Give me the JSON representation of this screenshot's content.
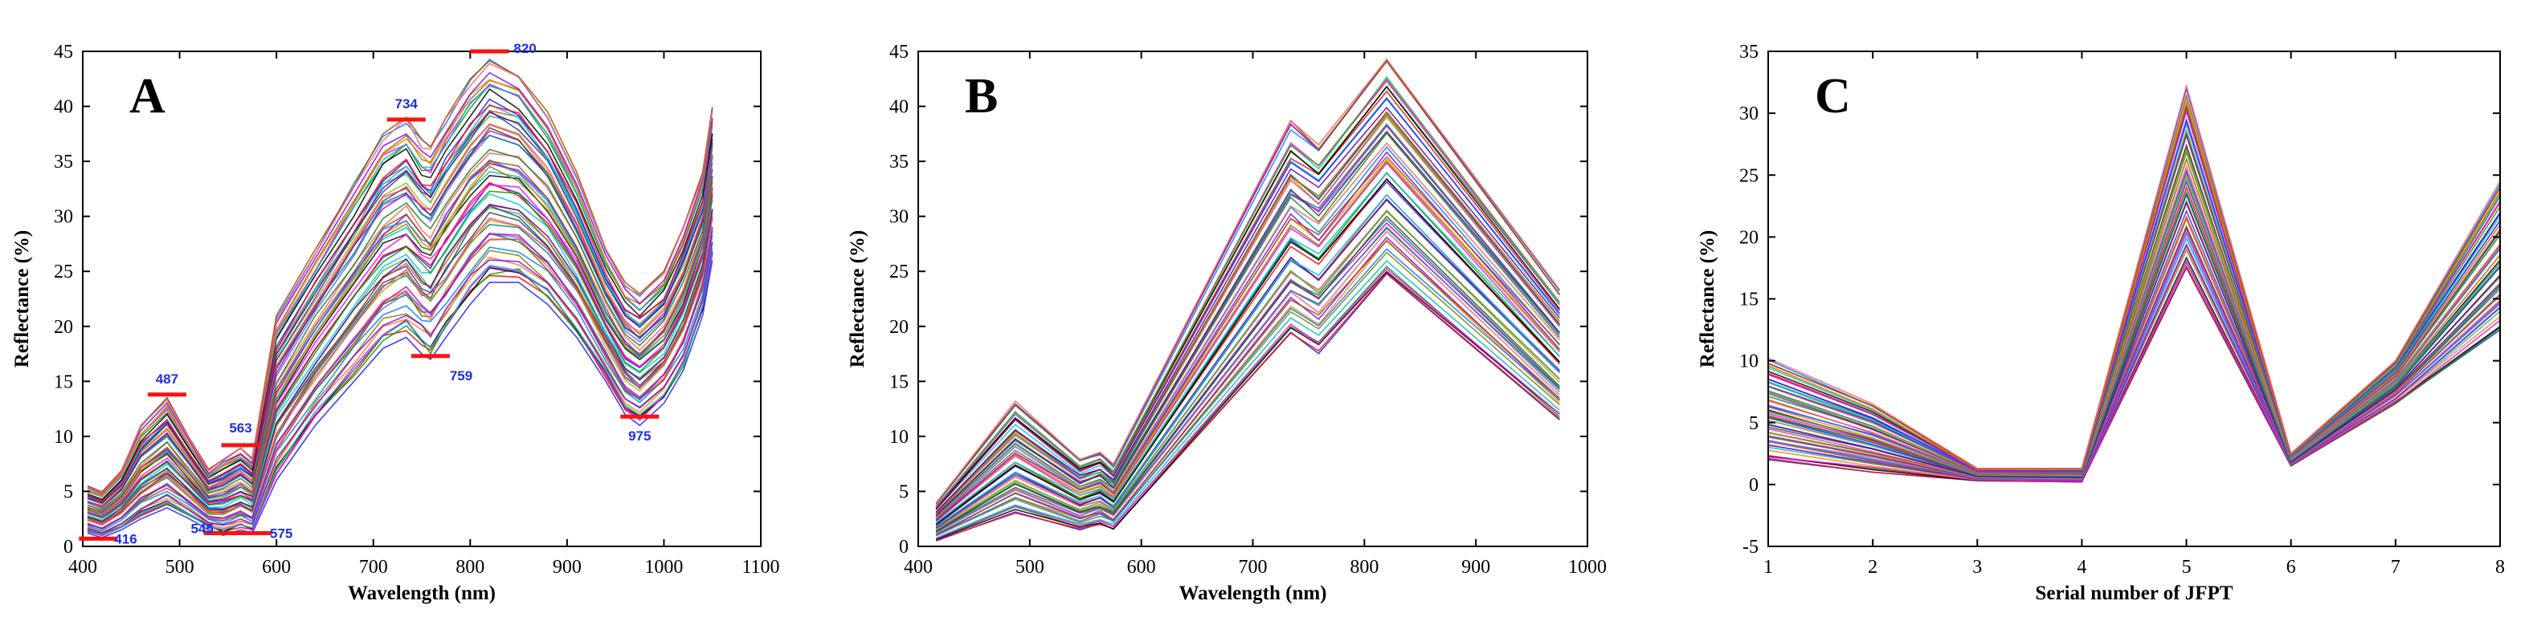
{
  "figure": {
    "panels": [
      "A",
      "B",
      "C"
    ]
  },
  "chart_data": [
    {
      "id": "A",
      "type": "line",
      "panel_label": "A",
      "title": "",
      "xlabel": "Wavelength (nm)",
      "ylabel": "Reflectance (%)",
      "xlim": [
        400,
        1100
      ],
      "ylim": [
        0,
        45
      ],
      "xticks": [
        "400",
        "500",
        "600",
        "700",
        "800",
        "900",
        "1000",
        "1100"
      ],
      "yticks": [
        "0",
        "5",
        "10",
        "15",
        "20",
        "25",
        "30",
        "35",
        "40",
        "45"
      ],
      "x": [
        405,
        420,
        440,
        460,
        487,
        510,
        530,
        545,
        563,
        575,
        600,
        640,
        680,
        710,
        734,
        750,
        759,
        775,
        800,
        820,
        850,
        880,
        910,
        940,
        960,
        975,
        1000,
        1020,
        1040,
        1050
      ],
      "envelope": {
        "max": [
          5.5,
          5,
          7,
          11,
          13.5,
          10,
          7,
          8,
          9,
          8,
          21,
          27,
          33,
          37.5,
          39,
          37,
          36.5,
          39,
          42.5,
          44.5,
          43,
          39.5,
          34,
          27,
          24,
          23,
          25,
          29,
          34,
          40
        ],
        "min": [
          1.2,
          0.8,
          1.5,
          2.5,
          3.5,
          2.5,
          1.5,
          1,
          1.5,
          1.2,
          6,
          11,
          15,
          18,
          19,
          17.5,
          17,
          19,
          22,
          24,
          24,
          22,
          19,
          15,
          12,
          11,
          13,
          16,
          21,
          26
        ]
      },
      "series_count": 60,
      "annotations": [
        {
          "text": "416",
          "x": 416,
          "y": 0.7,
          "marker": "red-bar"
        },
        {
          "text": "487",
          "x": 487,
          "y": 13.8,
          "marker": "red-bar"
        },
        {
          "text": "545",
          "x": 545,
          "y": 1.2,
          "marker": "red-bar"
        },
        {
          "text": "563",
          "x": 563,
          "y": 9.2,
          "marker": "red-bar"
        },
        {
          "text": "575",
          "x": 575,
          "y": 1.2,
          "marker": "red-bar"
        },
        {
          "text": "734",
          "x": 734,
          "y": 38.8,
          "marker": "red-bar"
        },
        {
          "text": "759",
          "x": 759,
          "y": 17.3,
          "marker": "red-bar"
        },
        {
          "text": "820",
          "x": 820,
          "y": 45,
          "marker": "red-bar"
        },
        {
          "text": "975",
          "x": 975,
          "y": 11.8,
          "marker": "red-bar"
        }
      ]
    },
    {
      "id": "B",
      "type": "line",
      "panel_label": "B",
      "title": "",
      "xlabel": "Wavelength (nm)",
      "ylabel": "Reflectance (%)",
      "xlim": [
        400,
        1000
      ],
      "ylim": [
        0,
        45
      ],
      "xticks": [
        "400",
        "500",
        "600",
        "700",
        "800",
        "900",
        "1000"
      ],
      "yticks": [
        "0",
        "5",
        "10",
        "15",
        "20",
        "25",
        "30",
        "35",
        "40",
        "45"
      ],
      "x": [
        416,
        487,
        545,
        563,
        575,
        734,
        759,
        820,
        975
      ],
      "envelope": {
        "max": [
          4,
          13.2,
          8,
          8.7,
          7.5,
          39,
          37,
          44.8,
          23.5
        ],
        "min": [
          0.5,
          3,
          1.5,
          2,
          1.5,
          19,
          17.5,
          24.5,
          11.5
        ]
      },
      "series_count": 60
    },
    {
      "id": "C",
      "type": "line",
      "panel_label": "C",
      "title": "",
      "xlabel": "Serial number of JFPT",
      "ylabel": "Reflectance (%)",
      "xlim": [
        1,
        8
      ],
      "ylim": [
        -5,
        35
      ],
      "xticks": [
        "1",
        "2",
        "3",
        "4",
        "5",
        "6",
        "7",
        "8"
      ],
      "yticks": [
        "-5",
        "0",
        "5",
        "10",
        "15",
        "20",
        "25",
        "30",
        "35"
      ],
      "x": [
        1,
        2,
        3,
        4,
        5,
        6,
        7,
        8
      ],
      "envelope": {
        "max": [
          10.2,
          6.5,
          1.3,
          1.3,
          32.2,
          2.5,
          10,
          24.5
        ],
        "min": [
          2,
          1,
          0.3,
          0.2,
          17.5,
          1.5,
          6.5,
          12.5
        ]
      },
      "series_count": 60
    }
  ]
}
